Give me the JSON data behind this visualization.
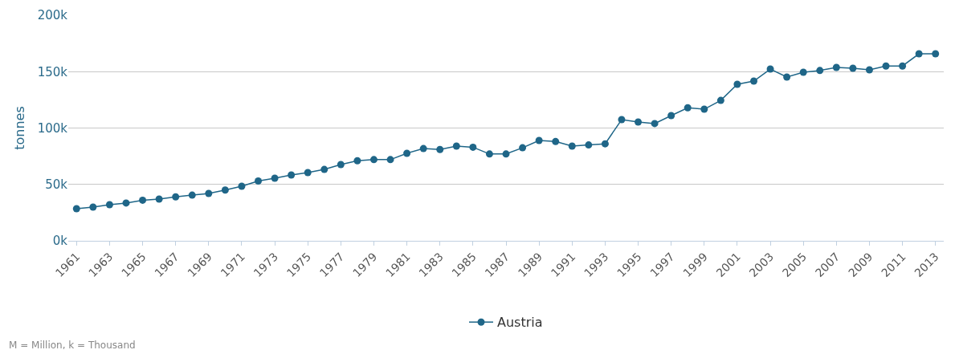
{
  "chart_data": {
    "type": "line",
    "ylabel": "tonnes",
    "x": [
      1961,
      1962,
      1963,
      1964,
      1965,
      1966,
      1967,
      1968,
      1969,
      1970,
      1971,
      1972,
      1973,
      1974,
      1975,
      1976,
      1977,
      1978,
      1979,
      1980,
      1981,
      1982,
      1983,
      1984,
      1985,
      1986,
      1987,
      1988,
      1989,
      1990,
      1991,
      1992,
      1993,
      1994,
      1995,
      1996,
      1997,
      1998,
      1999,
      2000,
      2001,
      2002,
      2003,
      2004,
      2005,
      2006,
      2007,
      2008,
      2009,
      2010,
      2011,
      2012,
      2013
    ],
    "series": [
      {
        "name": "Austria",
        "color": "#1f6688",
        "values": [
          28500,
          29900,
          32000,
          33500,
          36000,
          37000,
          39000,
          40500,
          42000,
          45000,
          48400,
          53000,
          55500,
          58400,
          60500,
          63300,
          67600,
          71000,
          72000,
          72000,
          77600,
          81800,
          81000,
          84000,
          83000,
          77000,
          77000,
          82500,
          89000,
          88000,
          84000,
          85000,
          86000,
          107500,
          105300,
          104000,
          111000,
          118000,
          116700,
          124500,
          138800,
          141600,
          152300,
          145200,
          149500,
          151000,
          153700,
          153000,
          151600,
          155000,
          155000,
          165800,
          165800
        ]
      }
    ],
    "xlim": [
      1960.5,
      2013.5
    ],
    "xticks": [
      1961,
      1963,
      1965,
      1967,
      1969,
      1971,
      1973,
      1975,
      1977,
      1979,
      1981,
      1983,
      1985,
      1987,
      1989,
      1991,
      1993,
      1995,
      1997,
      1999,
      2001,
      2003,
      2005,
      2007,
      2009,
      2011,
      2013
    ],
    "ylim": [
      0,
      200000
    ],
    "yticks": [
      {
        "value": 0,
        "label": "0k"
      },
      {
        "value": 50000,
        "label": "50k"
      },
      {
        "value": 100000,
        "label": "100k"
      },
      {
        "value": 150000,
        "label": "150k"
      },
      {
        "value": 200000,
        "label": "200k"
      }
    ],
    "grid": "y",
    "legend": "bottom",
    "marker": "circle",
    "line_style": "solid",
    "annotations": [
      "M = Million, k = Thousand"
    ]
  }
}
